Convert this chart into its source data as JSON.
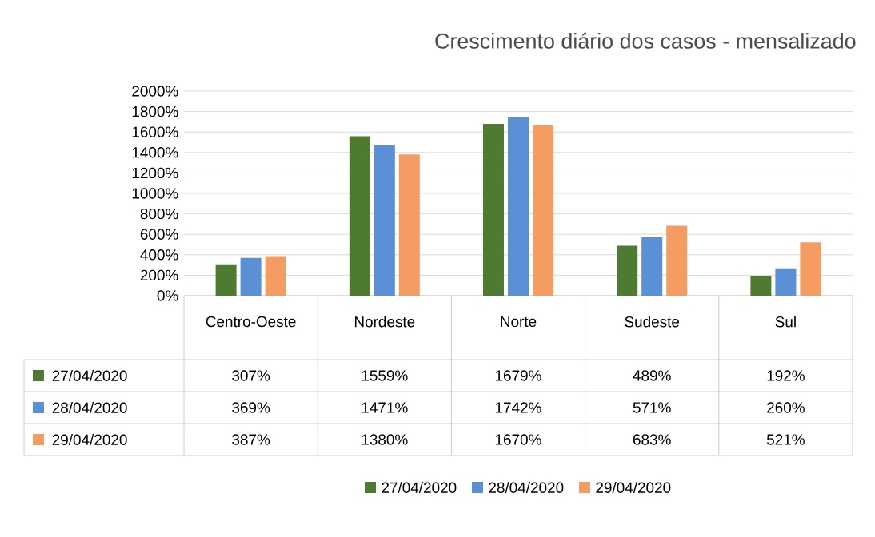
{
  "chart_data": {
    "type": "bar",
    "title": "Crescimento diário dos casos - mensalizado",
    "categories": [
      "Centro-Oeste",
      "Nordeste",
      "Norte",
      "Sudeste",
      "Sul"
    ],
    "series": [
      {
        "name": "27/04/2020",
        "color": "#4f7a32",
        "values": [
          307,
          1559,
          1679,
          489,
          192
        ],
        "value_labels": [
          "307%",
          "1559%",
          "1679%",
          "489%",
          "192%"
        ]
      },
      {
        "name": "28/04/2020",
        "color": "#5b8fd6",
        "values": [
          369,
          1471,
          1742,
          571,
          260
        ],
        "value_labels": [
          "369%",
          "1471%",
          "1742%",
          "571%",
          "260%"
        ]
      },
      {
        "name": "29/04/2020",
        "color": "#f49c62",
        "values": [
          387,
          1380,
          1670,
          683,
          521
        ],
        "value_labels": [
          "387%",
          "1380%",
          "1670%",
          "683%",
          "521%"
        ]
      }
    ],
    "ylim": [
      0,
      2000
    ],
    "yticks": [
      {
        "value": 0,
        "label": "0%"
      },
      {
        "value": 200,
        "label": "200%"
      },
      {
        "value": 400,
        "label": "400%"
      },
      {
        "value": 600,
        "label": "600%"
      },
      {
        "value": 800,
        "label": "800%"
      },
      {
        "value": 1000,
        "label": "1000%"
      },
      {
        "value": 1200,
        "label": "1200%"
      },
      {
        "value": 1400,
        "label": "1400%"
      },
      {
        "value": 1600,
        "label": "1600%"
      },
      {
        "value": 1800,
        "label": "1800%"
      },
      {
        "value": 2000,
        "label": "2000%"
      }
    ],
    "grid": "y",
    "legend": "bottom"
  }
}
